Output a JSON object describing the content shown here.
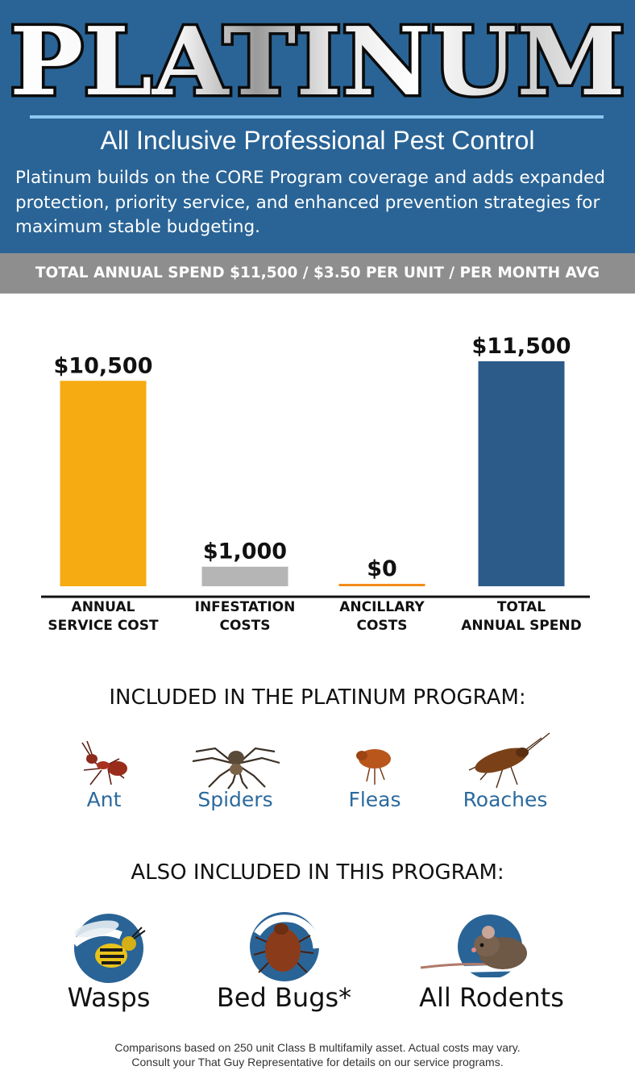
{
  "header": {
    "title": "PLATINUM",
    "subtitle": "All Inclusive Professional Pest Control",
    "intro": "Platinum builds on the CORE Program coverage and adds expanded protection, priority service, and enhanced prevention strategies for maximum stable budgeting."
  },
  "banner": {
    "text": "TOTAL ANNUAL SPEND $11,500 / $3.50 PER UNIT / PER MONTH AVG"
  },
  "colors": {
    "header_bg": "#2a6496",
    "banner_bg": "#8e8e8e",
    "accent_label": "#2b6a9e"
  },
  "chart_data": {
    "type": "bar",
    "categories": [
      [
        "ANNUAL",
        "SERVICE COST"
      ],
      [
        "INFESTATION",
        "COSTS"
      ],
      [
        "ANCILLARY",
        "COSTS"
      ],
      [
        "TOTAL",
        "ANNUAL SPEND"
      ]
    ],
    "values": [
      10500,
      1000,
      0,
      11500
    ],
    "value_labels": [
      "$10,500",
      "$1,000",
      "$0",
      "$11,500"
    ],
    "colors": [
      "#f6ab12",
      "#b5b5b5",
      "#f28e1a",
      "#2c5b8a"
    ],
    "ylim": [
      0,
      11500
    ],
    "grid": false,
    "title": "",
    "xlabel": "",
    "ylabel": ""
  },
  "included": {
    "heading": "INCLUDED IN THE PLATINUM PROGRAM:",
    "pests": [
      {
        "label": "Ant",
        "icon": "ant-icon"
      },
      {
        "label": "Spiders",
        "icon": "spider-icon"
      },
      {
        "label": "Fleas",
        "icon": "flea-icon"
      },
      {
        "label": "Roaches",
        "icon": "roach-icon"
      }
    ]
  },
  "also_included": {
    "heading": "ALSO INCLUDED IN THIS PROGRAM:",
    "pests": [
      {
        "label": "Wasps",
        "icon": "wasp-icon"
      },
      {
        "label": "Bed Bugs*",
        "icon": "bed-bug-icon"
      },
      {
        "label": "All Rodents",
        "icon": "mouse-icon"
      }
    ]
  },
  "footnote": {
    "line1": "Comparisons based on 250 unit Class B multifamily asset. Actual costs may vary.",
    "line2": "Consult your That Guy Representative for details on our service programs."
  }
}
